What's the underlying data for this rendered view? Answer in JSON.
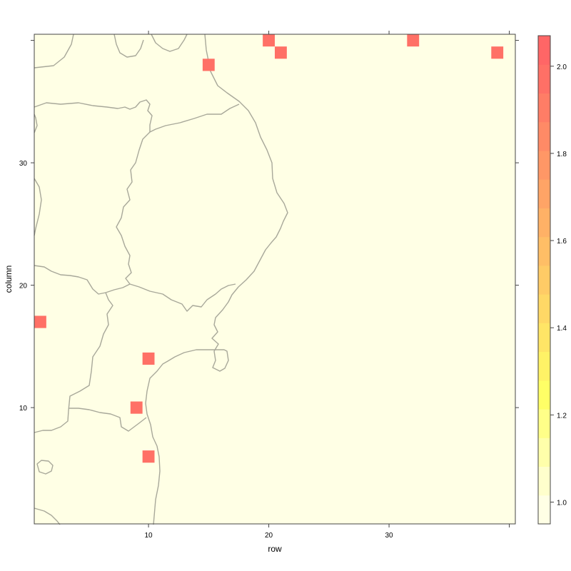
{
  "chart_data": {
    "type": "heatmap",
    "xlabel": "row",
    "ylabel": "column",
    "xlim": [
      0.5,
      40.5
    ],
    "ylim": [
      0.5,
      40.5
    ],
    "x_ticks": [
      10,
      20,
      30
    ],
    "y_ticks": [
      10,
      20,
      30
    ],
    "background_color": "#FFFFE5",
    "boundary_color": "#A8A89A",
    "cells": [
      {
        "row": 1,
        "column": 17,
        "value": 2.0
      },
      {
        "row": 9,
        "column": 10,
        "value": 2.0
      },
      {
        "row": 10,
        "column": 14,
        "value": 2.0
      },
      {
        "row": 10,
        "column": 6,
        "value": 2.0
      },
      {
        "row": 15,
        "column": 38,
        "value": 2.0
      },
      {
        "row": 20,
        "column": 40,
        "value": 2.0
      },
      {
        "row": 21,
        "column": 39,
        "value": 2.0
      },
      {
        "row": 32,
        "column": 40,
        "value": 2.0
      },
      {
        "row": 39,
        "column": 39,
        "value": 2.0
      }
    ],
    "colorbar": {
      "range": [
        0.95,
        2.07
      ],
      "ticks": [
        1.0,
        1.2,
        1.4,
        1.6,
        1.8,
        2.0
      ],
      "tick_labels": [
        "1.0",
        "1.2",
        "1.4",
        "1.6",
        "1.8",
        "2.0"
      ],
      "colors": [
        "#FFFFE5",
        "#FFFFCC",
        "#FFFFAA",
        "#FFFF88",
        "#FFFF66",
        "#FFF266",
        "#FFE566",
        "#FFD866",
        "#FFCB66",
        "#FFBE66",
        "#FFB166",
        "#FFA466",
        "#FF9766",
        "#FF8A66",
        "#FF7D66",
        "#FF7066",
        "#FF6666"
      ]
    }
  }
}
